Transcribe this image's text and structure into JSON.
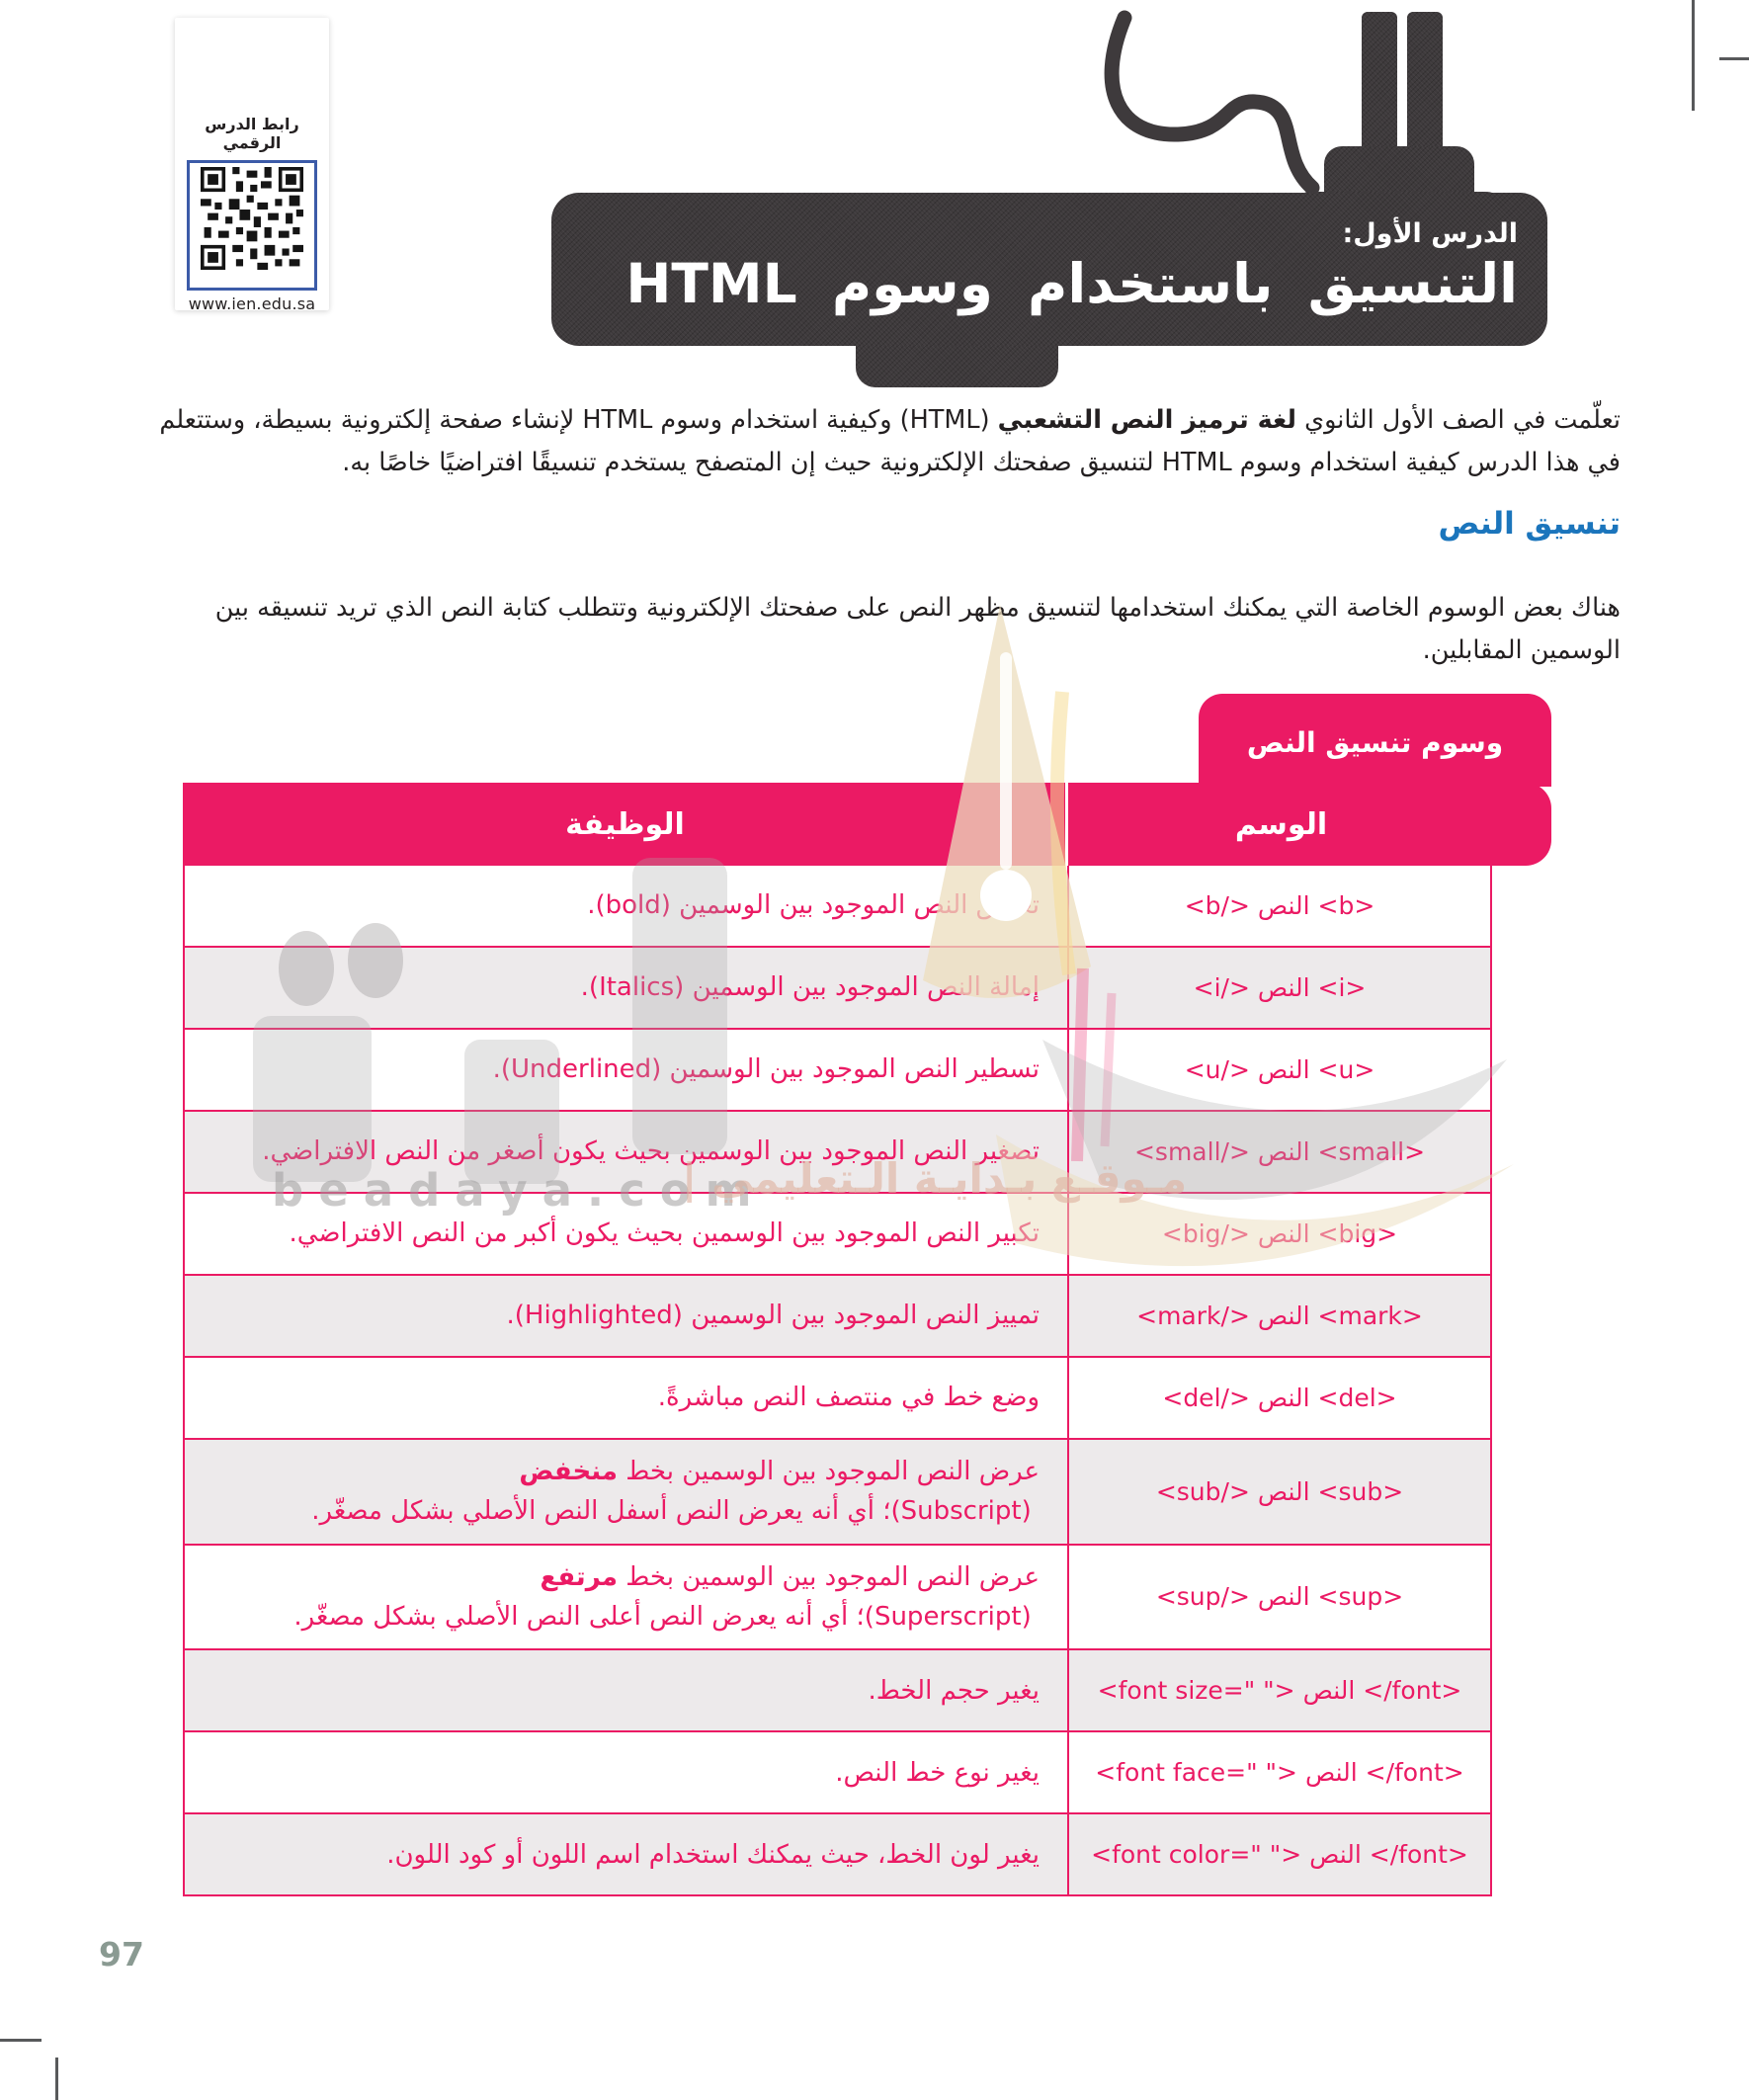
{
  "page": {
    "number": "97"
  },
  "qr": {
    "label": "رابط الدرس الرقمي",
    "url": "www.ien.edu.sa"
  },
  "banner": {
    "lesson": "الدرس الأول:",
    "title": "التنسيق باستخدام وسوم HTML"
  },
  "intro": {
    "a": "تعلّمت في الصف الأول الثانوي ",
    "bold": "لغة ترميز النص التشعبي",
    "b": " (HTML) وكيفية استخدام وسوم HTML لإنشاء صفحة إلكترونية بسيطة، وستتعلم في هذا الدرس كيفية استخدام وسوم HTML لتنسيق صفحتك الإلكترونية حيث إن المتصفح يستخدم تنسيقًا افتراضيًا خاصًا به."
  },
  "section": {
    "heading": "تنسيق النص",
    "body": "هناك بعض الوسوم الخاصة التي يمكنك استخدامها لتنسيق مظهر النص على صفحتك الإلكترونية وتتطلب كتابة النص الذي تريد تنسيقه بين الوسمين المقابلين."
  },
  "table": {
    "tab": "وسوم تنسيق النص",
    "headers": {
      "function": "الوظيفة",
      "tag": "الوسم"
    },
    "rows": [
      {
        "func": [
          {
            "t": "تغميق النص الموجود بين الوسمين (bold).",
            "b": false
          }
        ],
        "tag": "<b> النص </b>",
        "tag_dir": "rtl"
      },
      {
        "func": [
          {
            "t": "إمالة النص الموجود بين الوسمين (Italics).",
            "b": false
          }
        ],
        "tag": "<i> النص </i>",
        "tag_dir": "rtl"
      },
      {
        "func": [
          {
            "t": "تسطير النص الموجود بين الوسمين (Underlined).",
            "b": false
          }
        ],
        "tag": "<u> النص </u>",
        "tag_dir": "rtl"
      },
      {
        "func": [
          {
            "t": "تصغير النص الموجود بين الوسمين بحيث يكون أصغر من النص الافتراضي.",
            "b": false
          }
        ],
        "tag": "<small> النص </small>",
        "tag_dir": "rtl"
      },
      {
        "func": [
          {
            "t": "تكبير النص الموجود بين الوسمين بحيث يكون أكبر من النص الافتراضي.",
            "b": false
          }
        ],
        "tag": "<big> النص </big>",
        "tag_dir": "rtl"
      },
      {
        "func": [
          {
            "t": "تمييز النص الموجود بين الوسمين (Highlighted).",
            "b": false
          }
        ],
        "tag": "<mark> النص </mark>",
        "tag_dir": "rtl"
      },
      {
        "func": [
          {
            "t": "وضع خط في منتصف النص مباشرةً.",
            "b": false
          }
        ],
        "tag": "<del> النص </del>",
        "tag_dir": "rtl"
      },
      {
        "func": [
          {
            "t": "عرض النص الموجود بين الوسمين بخط ",
            "b": false
          },
          {
            "t": "منخفض",
            "b": true
          },
          {
            "t": " (Subscript)؛ أي أنه يعرض النص أسفل النص الأصلي بشكل مصغّر.",
            "b": false
          }
        ],
        "tag": "<sub> النص </sub>",
        "tag_dir": "rtl"
      },
      {
        "func": [
          {
            "t": "عرض النص الموجود بين الوسمين بخط ",
            "b": false
          },
          {
            "t": "مرتفع",
            "b": true
          },
          {
            "t": " (Superscript)؛ أي أنه يعرض النص أعلى النص الأصلي بشكل مصغّر.",
            "b": false
          }
        ],
        "tag": "<sup> النص </sup>",
        "tag_dir": "rtl"
      },
      {
        "func": [
          {
            "t": "يغير حجم الخط.",
            "b": false
          }
        ],
        "tag": "<font size=\" \"> النص </font>",
        "tag_dir": "ltr"
      },
      {
        "func": [
          {
            "t": "يغير نوع خط النص.",
            "b": false
          }
        ],
        "tag": "<font face=\" \"> النص </font>",
        "tag_dir": "ltr"
      },
      {
        "func": [
          {
            "t": "يغير لون الخط، حيث يمكنك استخدام اسم اللون أو كود اللون.",
            "b": false
          }
        ],
        "tag": "<font color=\" \"> النص </font>",
        "tag_dir": "ltr"
      }
    ]
  },
  "watermark": {
    "latin": "beadaya.com",
    "arabic": "مـوقـع بـدايـة الـتعليمي |"
  },
  "colors": {
    "pink": "#eb1a64",
    "blue": "#1b75bc",
    "dark": "#3e3a3c",
    "row_alt": "#edeaeb"
  }
}
